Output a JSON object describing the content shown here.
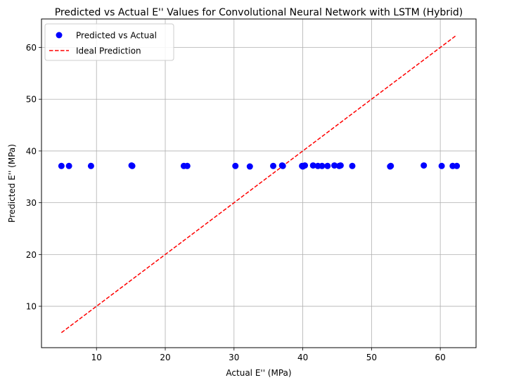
{
  "chart_data": {
    "type": "scatter",
    "title": "Predicted vs Actual E'' Values for Convolutional Neural Network with LSTM (Hybrid)",
    "xlabel": "Actual E'' (MPa)",
    "ylabel": "Predicted E'' (MPa)",
    "xlim": [
      2.0,
      65.2
    ],
    "ylim": [
      2.0,
      65.5
    ],
    "xticks": [
      10,
      20,
      30,
      40,
      50,
      60
    ],
    "yticks": [
      10,
      20,
      30,
      40,
      50,
      60
    ],
    "grid": true,
    "legend_position": "top-left",
    "series": [
      {
        "name": "Predicted vs Actual",
        "kind": "scatter",
        "color": "#0000ff",
        "points": [
          [
            4.9,
            37.1
          ],
          [
            6.0,
            37.1
          ],
          [
            9.2,
            37.1
          ],
          [
            15.1,
            37.2
          ],
          [
            15.2,
            37.1
          ],
          [
            22.7,
            37.1
          ],
          [
            23.2,
            37.1
          ],
          [
            30.2,
            37.1
          ],
          [
            32.3,
            37.0
          ],
          [
            35.7,
            37.1
          ],
          [
            37.0,
            37.2
          ],
          [
            37.1,
            37.1
          ],
          [
            39.9,
            37.1
          ],
          [
            40.0,
            37.0
          ],
          [
            40.3,
            37.2
          ],
          [
            41.5,
            37.2
          ],
          [
            42.2,
            37.1
          ],
          [
            42.8,
            37.1
          ],
          [
            43.6,
            37.1
          ],
          [
            44.6,
            37.2
          ],
          [
            45.3,
            37.1
          ],
          [
            45.5,
            37.2
          ],
          [
            47.2,
            37.1
          ],
          [
            52.7,
            37.0
          ],
          [
            52.8,
            37.1
          ],
          [
            57.6,
            37.2
          ],
          [
            60.2,
            37.1
          ],
          [
            61.8,
            37.1
          ],
          [
            62.4,
            37.1
          ]
        ]
      },
      {
        "name": "Ideal Prediction",
        "kind": "line",
        "style": "dashed",
        "color": "#ff0000",
        "points": [
          [
            4.9,
            4.9
          ],
          [
            62.4,
            62.4
          ]
        ]
      }
    ]
  }
}
